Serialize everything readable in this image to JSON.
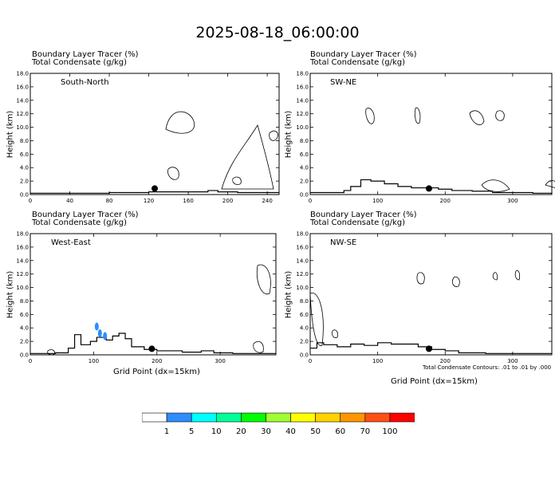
{
  "title": "2025-08-18_06:00:00",
  "panels": [
    {
      "name": "South-North",
      "header1": "Boundary Layer Tracer   (%)",
      "header2": "Total Condensate   (g/kg)",
      "xticks": [
        "0",
        "40",
        "80",
        "120",
        "160",
        "200",
        "240"
      ],
      "xtick_values": [
        0,
        40,
        80,
        120,
        160,
        200,
        240
      ],
      "xmax": 252
    },
    {
      "name": "SW-NE",
      "header1": "Boundary Layer Tracer   (%)",
      "header2": "Total Condensate   (g/kg)",
      "xticks": [
        "0",
        "100",
        "200",
        "300"
      ],
      "xtick_values": [
        0,
        100,
        200,
        300
      ],
      "xmax": 358
    },
    {
      "name": "West-East",
      "header1": "Boundary Layer Tracer   (%)",
      "header2": "Total Condensate   (g/kg)",
      "xticks": [
        "0",
        "100",
        "200",
        "300"
      ],
      "xtick_values": [
        0,
        100,
        200,
        300
      ],
      "xmax": 388
    },
    {
      "name": "NW-SE",
      "header1": "Boundary Layer Tracer   (%)",
      "header2": "Total Condensate   (g/kg)",
      "xticks": [
        "0",
        "100",
        "200",
        "300"
      ],
      "xtick_values": [
        0,
        100,
        200,
        300
      ],
      "xmax": 358
    }
  ],
  "y_ticks": [
    "0.0",
    "2.0",
    "4.0",
    "6.0",
    "8.0",
    "10.0",
    "12.0",
    "14.0",
    "16.0",
    "18.0"
  ],
  "y_label": "Height (km)",
  "x_label": "Grid Point (dx=15km)",
  "contour_note": "Total Condensate Contours: .01 to .01 by .000",
  "colorbar": {
    "labels": [
      "1",
      "5",
      "10",
      "20",
      "30",
      "40",
      "50",
      "60",
      "70",
      "100"
    ],
    "colors": [
      "#ffffff",
      "#2e8cff",
      "#00ffff",
      "#00ff96",
      "#00ff00",
      "#a0ff32",
      "#ffff00",
      "#ffd200",
      "#ff9600",
      "#ff5014",
      "#ff0000"
    ]
  },
  "chart_data": {
    "type": "contour",
    "ylim": [
      0,
      18
    ],
    "ylabel": "Height (km)",
    "xlabel": "Grid Point (dx=15km)",
    "markers": [
      {
        "panel": "South-North",
        "x": 126,
        "y": 0.9
      },
      {
        "panel": "SW-NE",
        "x": 176,
        "y": 0.9
      },
      {
        "panel": "West-East",
        "x": 192,
        "y": 0.9
      },
      {
        "panel": "NW-SE",
        "x": 176,
        "y": 0.9
      }
    ],
    "terrain": {
      "South-North": [
        [
          0,
          0.2
        ],
        [
          40,
          0.2
        ],
        [
          80,
          0.3
        ],
        [
          120,
          0.4
        ],
        [
          160,
          0.4
        ],
        [
          180,
          0.6
        ],
        [
          190,
          0.4
        ],
        [
          210,
          0.3
        ],
        [
          230,
          0.3
        ],
        [
          252,
          0.3
        ]
      ],
      "SW-NE": [
        [
          0,
          0.3
        ],
        [
          30,
          0.3
        ],
        [
          50,
          0.6
        ],
        [
          60,
          1.2
        ],
        [
          75,
          2.2
        ],
        [
          90,
          2.0
        ],
        [
          110,
          1.6
        ],
        [
          130,
          1.2
        ],
        [
          150,
          1.0
        ],
        [
          170,
          1.0
        ],
        [
          190,
          0.8
        ],
        [
          210,
          0.6
        ],
        [
          240,
          0.5
        ],
        [
          270,
          0.3
        ],
        [
          300,
          0.3
        ],
        [
          330,
          0.2
        ],
        [
          358,
          0.3
        ]
      ],
      "West-East": [
        [
          0,
          0.2
        ],
        [
          20,
          0.2
        ],
        [
          40,
          0.3
        ],
        [
          60,
          1.0
        ],
        [
          70,
          3.0
        ],
        [
          80,
          1.5
        ],
        [
          95,
          2.0
        ],
        [
          105,
          2.6
        ],
        [
          120,
          2.2
        ],
        [
          130,
          2.8
        ],
        [
          140,
          3.2
        ],
        [
          150,
          2.4
        ],
        [
          160,
          1.2
        ],
        [
          180,
          0.8
        ],
        [
          200,
          0.6
        ],
        [
          240,
          0.4
        ],
        [
          270,
          0.6
        ],
        [
          290,
          0.3
        ],
        [
          320,
          0.2
        ],
        [
          388,
          0.2
        ]
      ],
      "NW-SE": [
        [
          0,
          1.0
        ],
        [
          10,
          1.8
        ],
        [
          20,
          1.5
        ],
        [
          40,
          1.2
        ],
        [
          60,
          1.6
        ],
        [
          80,
          1.4
        ],
        [
          100,
          1.8
        ],
        [
          120,
          1.6
        ],
        [
          140,
          1.6
        ],
        [
          160,
          1.2
        ],
        [
          180,
          0.8
        ],
        [
          200,
          0.6
        ],
        [
          220,
          0.3
        ],
        [
          260,
          0.2
        ],
        [
          300,
          0.2
        ],
        [
          358,
          0.2
        ]
      ]
    },
    "tracer_patches": [
      {
        "panel": "West-East",
        "category": "1-5",
        "x": 110,
        "y": 3.2
      },
      {
        "panel": "West-East",
        "category": "1-5",
        "x": 118,
        "y": 2.8
      },
      {
        "panel": "West-East",
        "category": "1-5",
        "x": 105,
        "y": 4.2
      }
    ]
  }
}
